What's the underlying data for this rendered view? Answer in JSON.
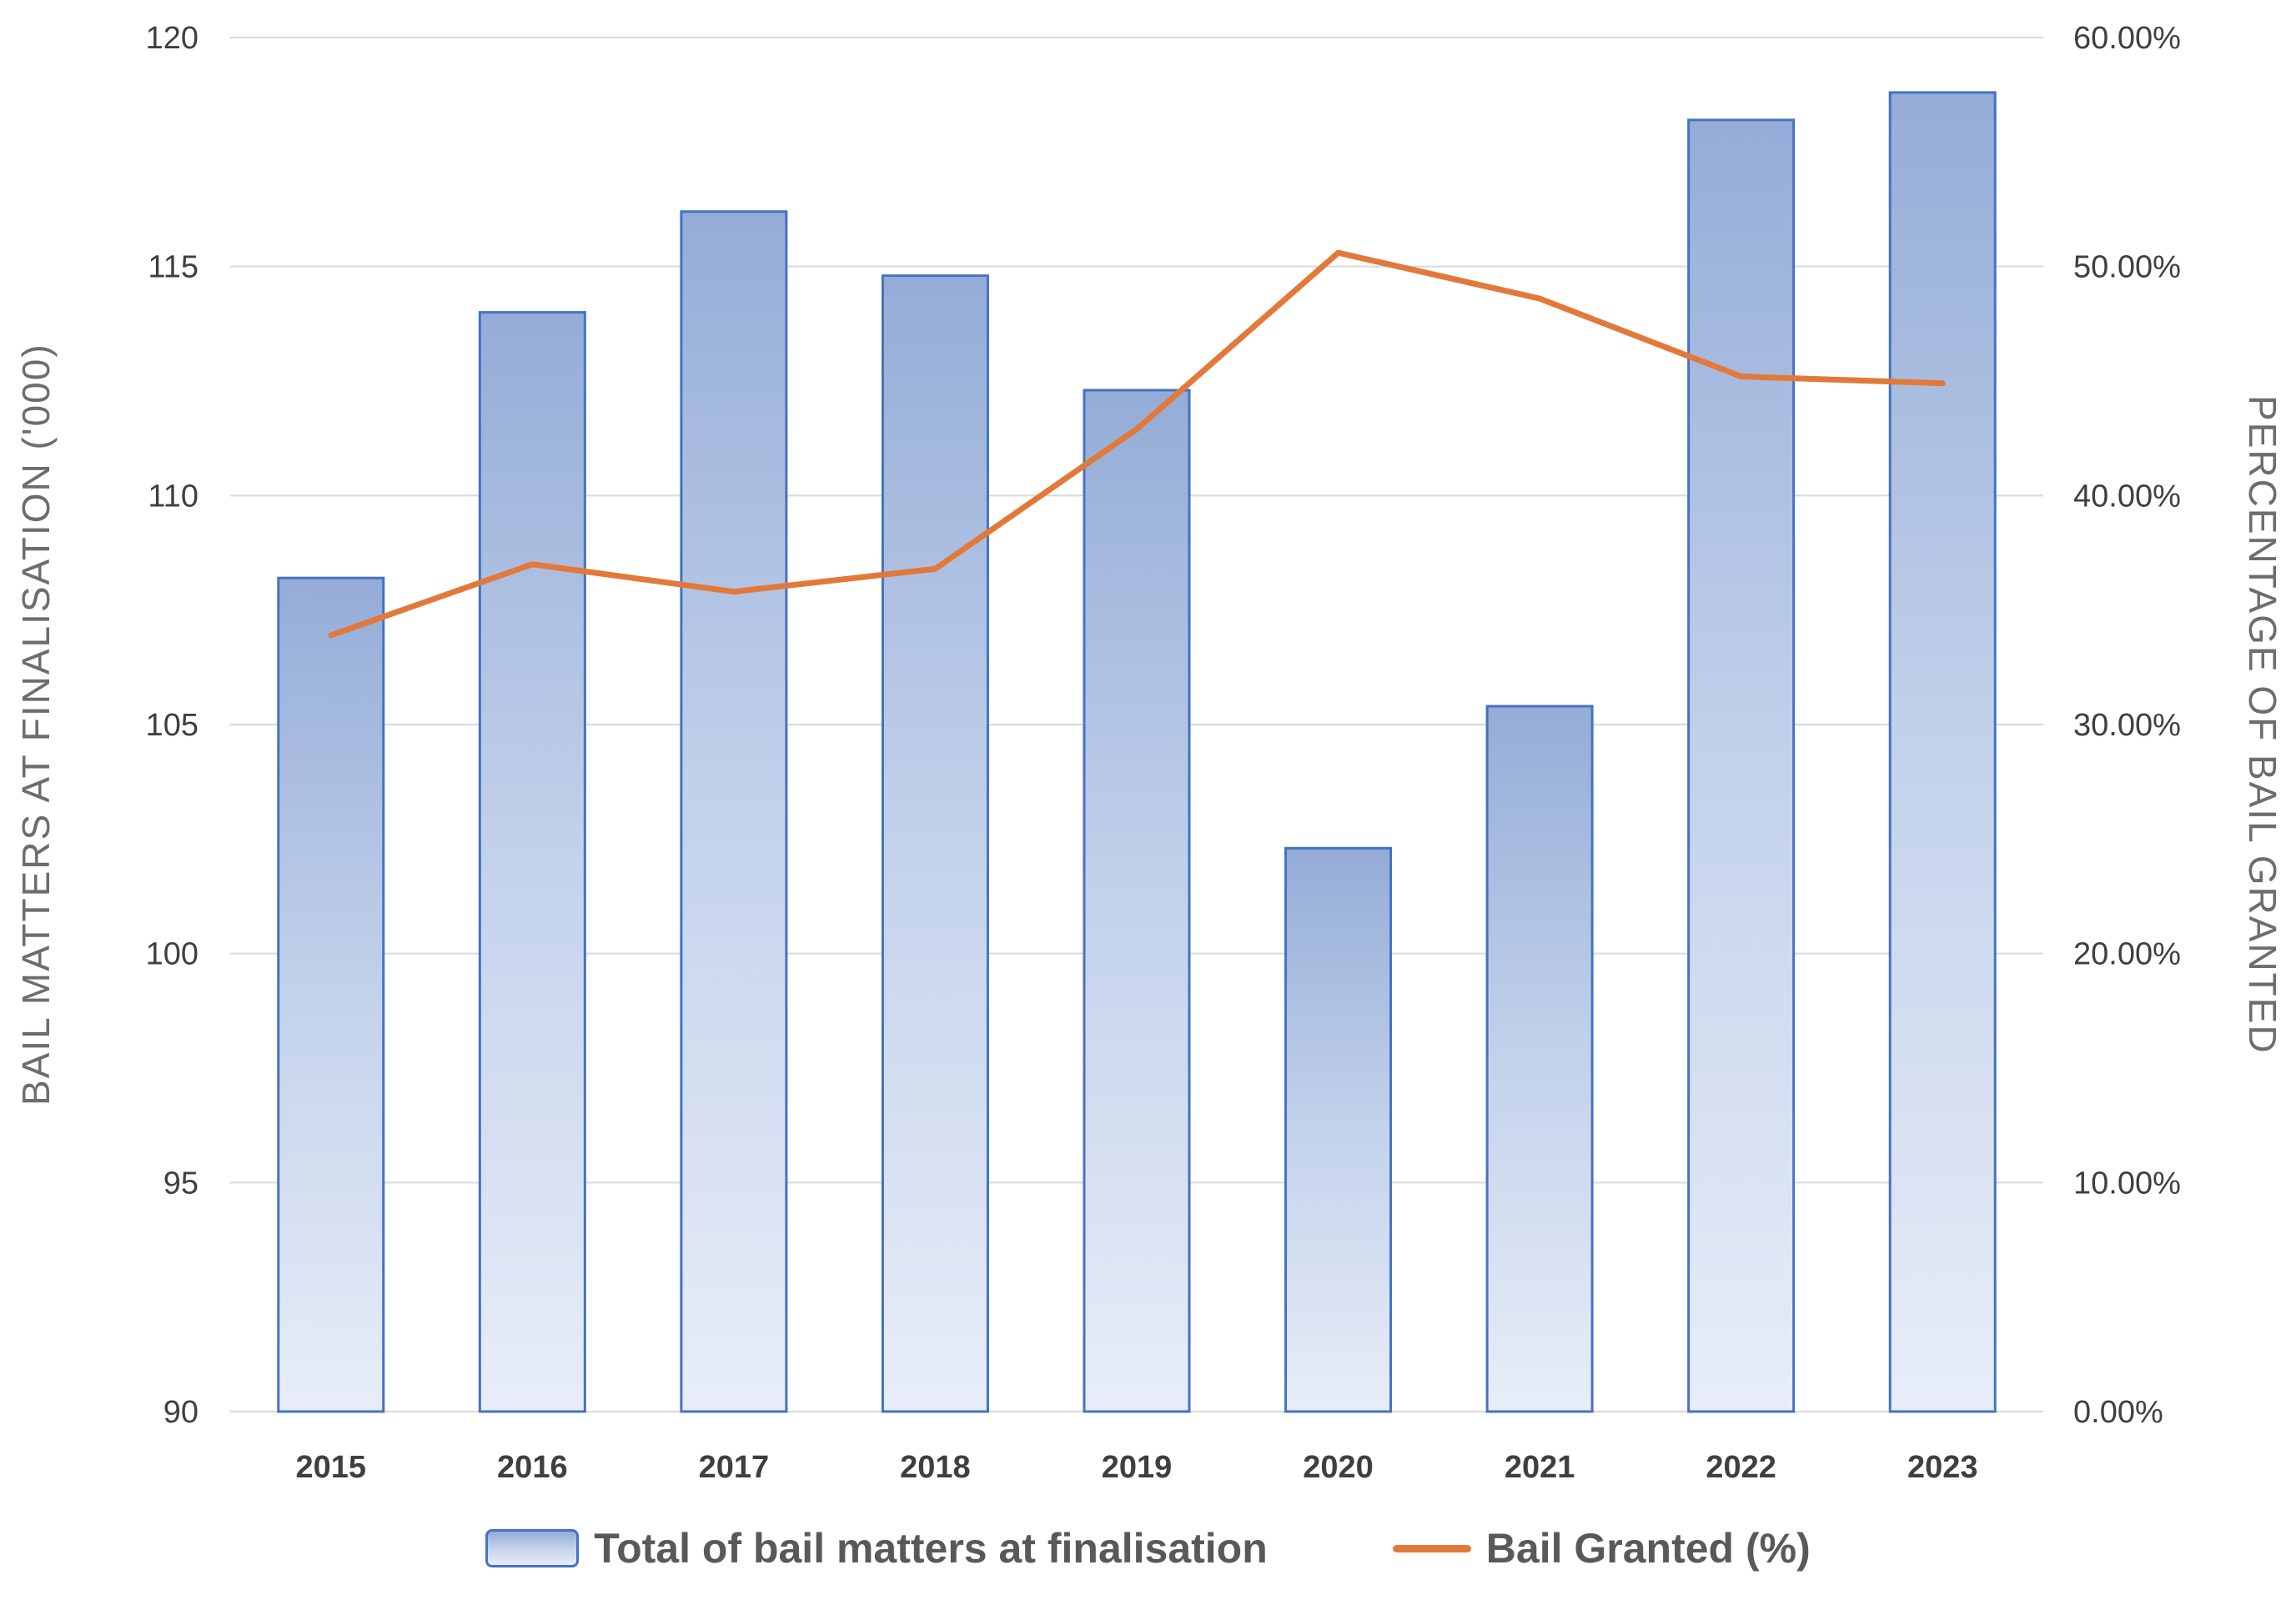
{
  "chart_data": {
    "type": "bar+line",
    "categories": [
      "2015",
      "2016",
      "2017",
      "2018",
      "2019",
      "2020",
      "2021",
      "2022",
      "2023"
    ],
    "series": [
      {
        "name": "Total of bail matters at finalisation",
        "type": "bar",
        "axis": "left",
        "values": [
          108.2,
          114.0,
          116.2,
          114.8,
          112.3,
          102.3,
          105.4,
          118.2,
          118.8
        ]
      },
      {
        "name": "Bail Granted (%)",
        "type": "line",
        "axis": "right",
        "values": [
          33.9,
          37.0,
          35.8,
          36.8,
          42.9,
          50.6,
          48.6,
          45.2,
          44.9
        ]
      }
    ],
    "left_axis": {
      "title": "BAIL MATTERS AT FINALISATION ('000)",
      "min": 90,
      "max": 120,
      "ticks": [
        {
          "v": 90,
          "label": "90"
        },
        {
          "v": 95,
          "label": "95"
        },
        {
          "v": 100,
          "label": "100"
        },
        {
          "v": 105,
          "label": "105"
        },
        {
          "v": 110,
          "label": "110"
        },
        {
          "v": 115,
          "label": "115"
        },
        {
          "v": 120,
          "label": "120"
        }
      ]
    },
    "right_axis": {
      "title": "PERCENTAGE OF BAIL GRANTED",
      "min": 0,
      "max": 60,
      "ticks": [
        {
          "v": 0,
          "label": "0.00%"
        },
        {
          "v": 10,
          "label": "10.00%"
        },
        {
          "v": 20,
          "label": "20.00%"
        },
        {
          "v": 30,
          "label": "30.00%"
        },
        {
          "v": 40,
          "label": "40.00%"
        },
        {
          "v": 50,
          "label": "50.00%"
        },
        {
          "v": 60,
          "label": "60.00%"
        }
      ]
    },
    "grid": "horizontal",
    "legend_position": "bottom",
    "colors": {
      "bar_fill_top": "#94ACD7",
      "bar_fill_mid": "#C3D2EB",
      "bar_fill_bottom": "#E8EDF8",
      "bar_border": "#4472C4",
      "line": "#E2793B",
      "gridline": "#D9D9D9",
      "tick_text": "#3F3F3F",
      "axis_title_text": "#6D6D6D"
    }
  },
  "legend": {
    "items": [
      {
        "label": "Total of bail matters at finalisation",
        "swatch": "bar-swatch-icon"
      },
      {
        "label": "Bail Granted (%)",
        "swatch": "line-swatch-icon"
      }
    ]
  }
}
